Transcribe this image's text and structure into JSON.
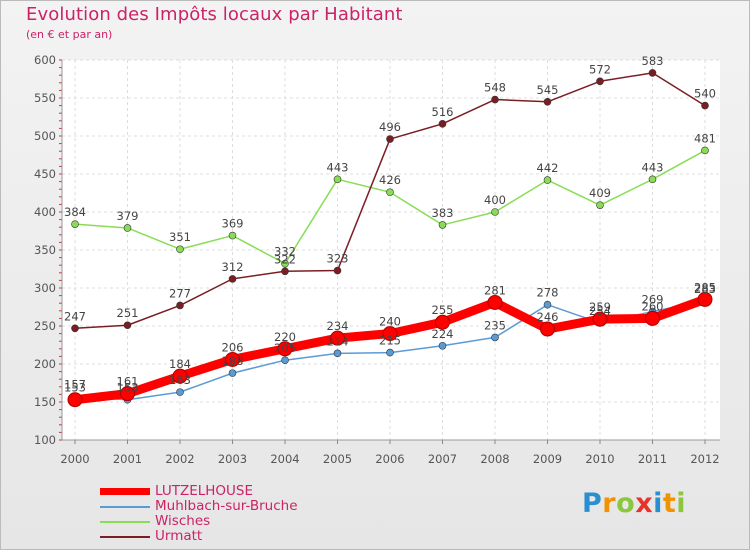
{
  "title": "Evolution des Impôts locaux par Habitant",
  "subtitle": "(en € et par an)",
  "brand": "Proxiti",
  "chart_data": {
    "type": "line",
    "title": "Evolution des Impôts locaux par Habitant",
    "subtitle": "(en € et par an)",
    "xlabel": "",
    "ylabel": "",
    "ylim": [
      100,
      600
    ],
    "yticks": [
      100,
      150,
      200,
      250,
      300,
      350,
      400,
      450,
      500,
      550,
      600
    ],
    "grid": true,
    "legend_position": "bottom-left",
    "categories": [
      "2000",
      "2001",
      "2002",
      "2003",
      "2004",
      "2005",
      "2006",
      "2007",
      "2008",
      "2009",
      "2010",
      "2011",
      "2012"
    ],
    "series": [
      {
        "name": "LUTZELHOUSE",
        "color": "#ff0000",
        "emphasis": true,
        "values": [
          153,
          161,
          184,
          206,
          220,
          234,
          240,
          255,
          281,
          246,
          259,
          260,
          285
        ]
      },
      {
        "name": "Muhlbach-sur-Bruche",
        "color": "#5b9bd5",
        "emphasis": false,
        "values": [
          157,
          153,
          163,
          188,
          205,
          214,
          215,
          224,
          235,
          278,
          254,
          269,
          283
        ]
      },
      {
        "name": "Wisches",
        "color": "#88dd55",
        "emphasis": false,
        "values": [
          384,
          379,
          351,
          369,
          332,
          443,
          426,
          383,
          400,
          442,
          409,
          443,
          481
        ]
      },
      {
        "name": "Urmatt",
        "color": "#7a1e24",
        "emphasis": false,
        "values": [
          247,
          251,
          277,
          312,
          322,
          323,
          496,
          516,
          548,
          545,
          572,
          583,
          540
        ]
      }
    ]
  }
}
